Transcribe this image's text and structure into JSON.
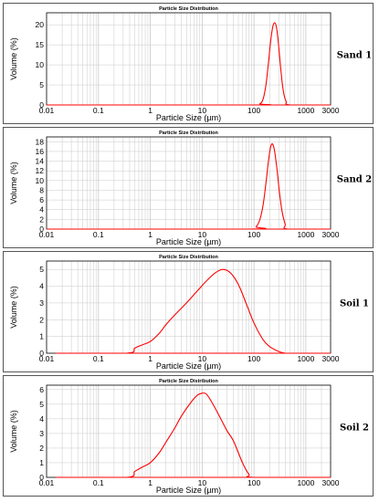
{
  "colors": {
    "curve": "#ff0000",
    "grid": "#c8c8c8",
    "axis": "#000000",
    "border": "#555555"
  },
  "chart_data": [
    {
      "type": "line",
      "title": "Particle Size Distribution",
      "sample": "Sand 1",
      "xlabel": "Particle Size (µm)",
      "ylabel": "Volume (%)",
      "xscale": "log",
      "xlim": [
        0.01,
        3000
      ],
      "ylim": [
        0,
        23
      ],
      "xticks": [
        "0.01",
        "0.1",
        "1",
        "10",
        "100",
        "1000",
        "3000"
      ],
      "yticks": [
        "0",
        "5",
        "10",
        "15",
        "20"
      ],
      "grid": true,
      "series": [
        {
          "x": [
            0.01,
            100,
            130,
            150,
            170,
            190,
            210,
            230,
            250,
            270,
            290,
            320,
            350,
            380,
            420,
            500,
            3000
          ],
          "y": [
            0,
            0,
            0.3,
            1.5,
            5,
            10.5,
            16,
            19.5,
            20.5,
            19.5,
            16.5,
            10.5,
            5.5,
            2.5,
            0.8,
            0,
            0
          ]
        }
      ]
    },
    {
      "type": "line",
      "title": "Particle Size Distribution",
      "sample": "Sand 2",
      "xlabel": "Particle Size (µm)",
      "ylabel": "Volume (%)",
      "xscale": "log",
      "xlim": [
        0.01,
        3000
      ],
      "ylim": [
        0,
        19
      ],
      "xticks": [
        "0.01",
        "0.1",
        "1",
        "10",
        "100",
        "1000",
        "3000"
      ],
      "yticks": [
        "0",
        "2",
        "4",
        "6",
        "8",
        "10",
        "12",
        "14",
        "16",
        "18"
      ],
      "grid": true,
      "series": [
        {
          "x": [
            0.01,
            80,
            110,
            130,
            150,
            170,
            190,
            210,
            230,
            250,
            280,
            310,
            350,
            400,
            450,
            3000
          ],
          "y": [
            0,
            0,
            0.5,
            2,
            5,
            9.5,
            14,
            17,
            17.5,
            16,
            12,
            7.5,
            3.5,
            1,
            0,
            0
          ]
        }
      ]
    },
    {
      "type": "line",
      "title": "Particle Size Distribution",
      "sample": "Soil 1",
      "xlabel": "Particle Size (µm)",
      "ylabel": "Volume (%)",
      "xscale": "log",
      "xlim": [
        0.01,
        3000
      ],
      "ylim": [
        0,
        5.5
      ],
      "xticks": [
        "0.01",
        "0.1",
        "1",
        "10",
        "100",
        "1000",
        "3000"
      ],
      "yticks": [
        "0",
        "1",
        "2",
        "3",
        "4",
        "5"
      ],
      "grid": true,
      "series": [
        {
          "x": [
            0.02,
            0.35,
            0.5,
            0.7,
            1,
            1.5,
            2,
            3,
            5,
            8,
            12,
            18,
            25,
            35,
            50,
            70,
            100,
            150,
            200,
            300,
            400
          ],
          "y": [
            0,
            0,
            0.3,
            0.5,
            0.7,
            1.2,
            1.7,
            2.3,
            3,
            3.7,
            4.3,
            4.8,
            5,
            4.8,
            4.1,
            3,
            1.8,
            0.8,
            0.4,
            0.1,
            0
          ]
        }
      ]
    },
    {
      "type": "line",
      "title": "Particle Size Distribution",
      "sample": "Soil 2",
      "xlabel": "Particle Size (µm)",
      "ylabel": "Volume (%)",
      "xscale": "log",
      "xlim": [
        0.01,
        3000
      ],
      "ylim": [
        0,
        6.3
      ],
      "xticks": [
        "0.01",
        "0.1",
        "1",
        "10",
        "100",
        "1000",
        "3000"
      ],
      "yticks": [
        "0",
        "1",
        "2",
        "3",
        "4",
        "5",
        "6"
      ],
      "grid": true,
      "series": [
        {
          "x": [
            0.02,
            0.35,
            0.5,
            0.7,
            1,
            1.5,
            2,
            3,
            4,
            6,
            8,
            10,
            12,
            15,
            20,
            30,
            40,
            60,
            80,
            100,
            3000
          ],
          "y": [
            0,
            0,
            0.4,
            0.7,
            1,
            1.7,
            2.4,
            3.4,
            4.2,
            5.1,
            5.6,
            5.75,
            5.7,
            5.2,
            4.4,
            3.2,
            2.5,
            1,
            0.2,
            0,
            0
          ]
        }
      ]
    }
  ]
}
